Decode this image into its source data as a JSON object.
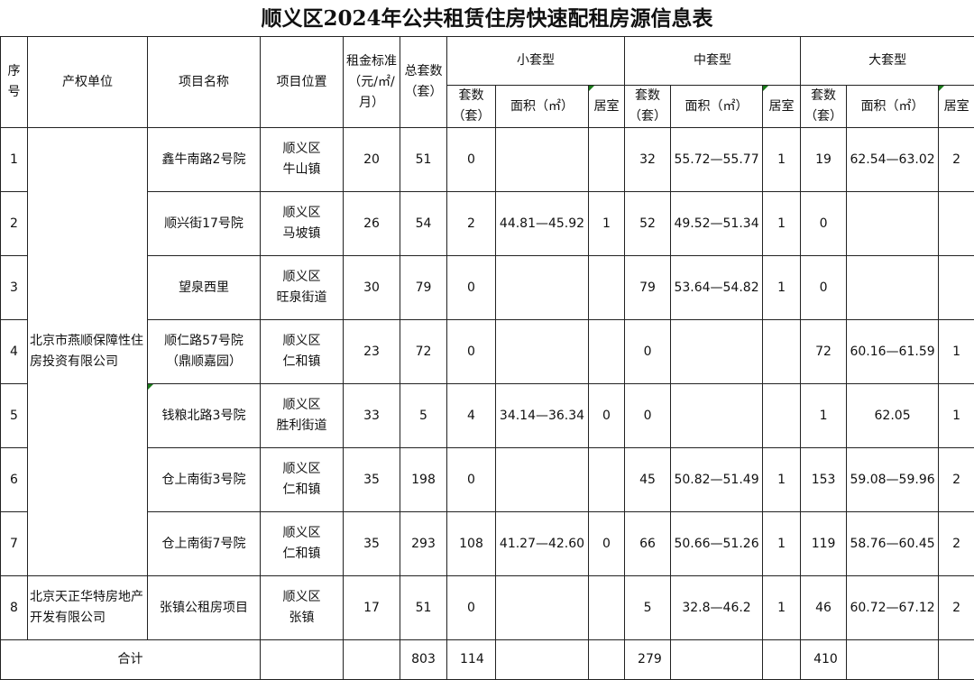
{
  "title": "顺义区2024年公共租赁住房快速配租房源信息表",
  "headers": {
    "seq": "序号",
    "owner": "产权单位",
    "project": "项目名称",
    "location": "项目位置",
    "rent": "租金标准（元/㎡/月）",
    "total": "总套数（套）",
    "small": "小套型",
    "medium": "中套型",
    "large": "大套型",
    "count": "套数（套）",
    "area": "面积（㎡）",
    "rooms": "居室"
  },
  "owners": [
    "北京市燕顺保障性住房投资有限公司",
    "北京天正华特房地产开发有限公司"
  ],
  "rows": [
    {
      "seq": "1",
      "project": "鑫牛南路2号院",
      "location": "顺义区\n牛山镇",
      "rent": "20",
      "total": "51",
      "s_count": "0",
      "s_area": "",
      "s_rooms": "",
      "m_count": "32",
      "m_area": "55.72—55.77",
      "m_rooms": "1",
      "l_count": "19",
      "l_area": "62.54—63.02",
      "l_rooms": "2"
    },
    {
      "seq": "2",
      "project": "顺兴街17号院",
      "location": "顺义区\n马坡镇",
      "rent": "26",
      "total": "54",
      "s_count": "2",
      "s_area": "44.81—45.92",
      "s_rooms": "1",
      "m_count": "52",
      "m_area": "49.52—51.34",
      "m_rooms": "1",
      "l_count": "0",
      "l_area": "",
      "l_rooms": ""
    },
    {
      "seq": "3",
      "project": "望泉西里",
      "location": "顺义区\n旺泉街道",
      "rent": "30",
      "total": "79",
      "s_count": "0",
      "s_area": "",
      "s_rooms": "",
      "m_count": "79",
      "m_area": "53.64—54.82",
      "m_rooms": "1",
      "l_count": "0",
      "l_area": "",
      "l_rooms": ""
    },
    {
      "seq": "4",
      "project": "顺仁路57号院\n（鼎顺嘉园）",
      "location": "顺义区\n仁和镇",
      "rent": "23",
      "total": "72",
      "s_count": "0",
      "s_area": "",
      "s_rooms": "",
      "m_count": "0",
      "m_area": "",
      "m_rooms": "",
      "l_count": "72",
      "l_area": "60.16—61.59",
      "l_rooms": "1"
    },
    {
      "seq": "5",
      "project": "钱粮北路3号院",
      "location": "顺义区\n胜利街道",
      "rent": "33",
      "total": "5",
      "s_count": "4",
      "s_area": "34.14—36.34",
      "s_rooms": "0",
      "m_count": "0",
      "m_area": "",
      "m_rooms": "",
      "l_count": "1",
      "l_area": "62.05",
      "l_rooms": "1"
    },
    {
      "seq": "6",
      "project": "仓上南街3号院",
      "location": "顺义区\n仁和镇",
      "rent": "35",
      "total": "198",
      "s_count": "0",
      "s_area": "",
      "s_rooms": "",
      "m_count": "45",
      "m_area": "50.82—51.49",
      "m_rooms": "1",
      "l_count": "153",
      "l_area": "59.08—59.96",
      "l_rooms": "2"
    },
    {
      "seq": "7",
      "project": "仓上南街7号院",
      "location": "顺义区\n仁和镇",
      "rent": "35",
      "total": "293",
      "s_count": "108",
      "s_area": "41.27—42.60",
      "s_rooms": "0",
      "m_count": "66",
      "m_area": "50.66—51.26",
      "m_rooms": "1",
      "l_count": "119",
      "l_area": "58.76—60.45",
      "l_rooms": "2"
    },
    {
      "seq": "8",
      "project": "张镇公租房项目",
      "location": "顺义区\n张镇",
      "rent": "17",
      "total": "51",
      "s_count": "0",
      "s_area": "",
      "s_rooms": "",
      "m_count": "5",
      "m_area": "32.8—46.2",
      "m_rooms": "1",
      "l_count": "46",
      "l_area": "60.72—67.12",
      "l_rooms": "2"
    }
  ],
  "totals": {
    "label": "合计",
    "total": "803",
    "small": "114",
    "medium": "279",
    "large": "410"
  },
  "colors": {
    "border": "#222222",
    "comment_marker": "#1a7a1a"
  }
}
